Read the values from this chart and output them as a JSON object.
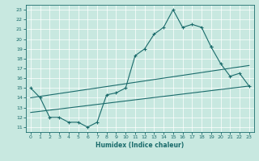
{
  "xlabel": "Humidex (Indice chaleur)",
  "xlim": [
    -0.5,
    23.5
  ],
  "ylim": [
    10.5,
    23.5
  ],
  "yticks": [
    11,
    12,
    13,
    14,
    15,
    16,
    17,
    18,
    19,
    20,
    21,
    22,
    23
  ],
  "xticks": [
    0,
    1,
    2,
    3,
    4,
    5,
    6,
    7,
    8,
    9,
    10,
    11,
    12,
    13,
    14,
    15,
    16,
    17,
    18,
    19,
    20,
    21,
    22,
    23
  ],
  "bg_color": "#c8e8e0",
  "line_color": "#1a6b6b",
  "grid_color": "#ffffff",
  "lines": [
    {
      "x": [
        0,
        1,
        2,
        3,
        4,
        5,
        6,
        7,
        8,
        9,
        10,
        11,
        12,
        13,
        14,
        15,
        16,
        17,
        18,
        19
      ],
      "y": [
        15,
        14,
        12,
        12,
        11.5,
        11.5,
        11.0,
        11.5,
        14.3,
        14.5,
        15,
        18.3,
        19.0,
        20.5,
        21.2,
        23.0,
        21.2,
        21.5,
        21.2,
        19.2
      ],
      "marker": true
    },
    {
      "x": [
        19,
        20,
        21,
        22,
        23
      ],
      "y": [
        19.2,
        17.5,
        16.2,
        16.5,
        15.2
      ],
      "marker": true
    },
    {
      "x": [
        0,
        23
      ],
      "y": [
        12.5,
        15.2
      ],
      "marker": false
    },
    {
      "x": [
        0,
        23
      ],
      "y": [
        14.0,
        17.3
      ],
      "marker": false
    }
  ]
}
